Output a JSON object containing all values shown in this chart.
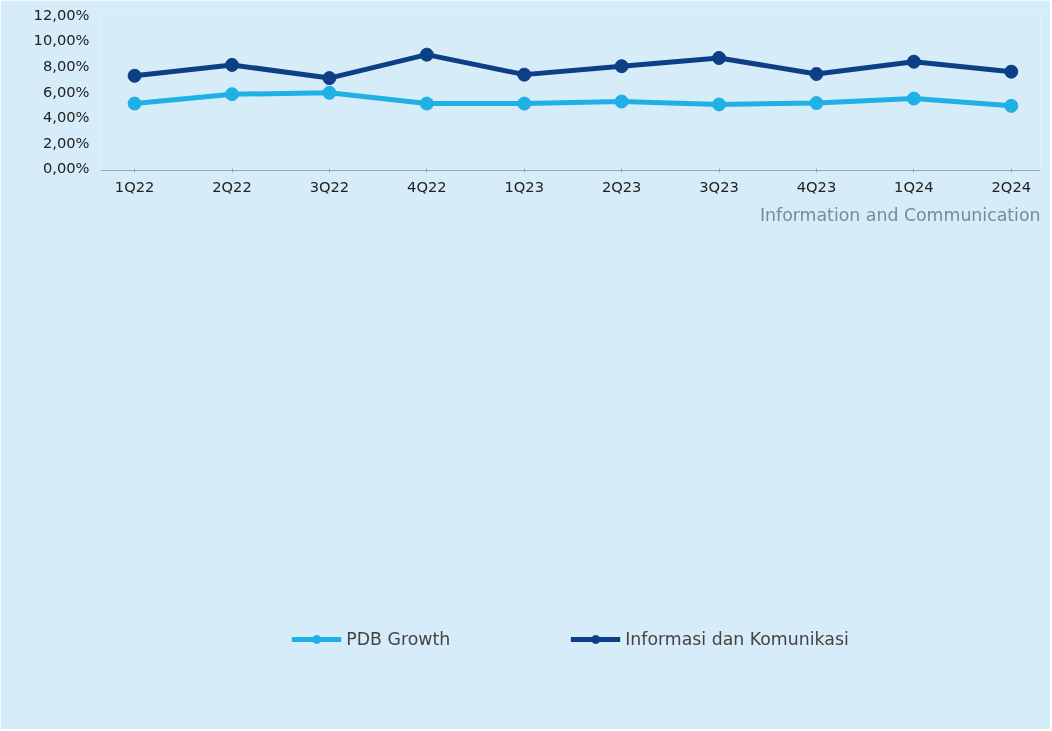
{
  "chart_data": {
    "type": "line",
    "categories": [
      "1Q22",
      "2Q22",
      "3Q22",
      "4Q22",
      "1Q23",
      "2Q23",
      "3Q23",
      "4Q23",
      "1Q24",
      "2Q24"
    ],
    "series": [
      {
        "name": "PDB Growth",
        "color": "#1fb0e6",
        "values": [
          5.03,
          5.76,
          5.87,
          5.03,
          5.03,
          5.19,
          4.96,
          5.07,
          5.42,
          4.85
        ]
      },
      {
        "name": "Informasi dan Komunikasi",
        "color": "#0d3f86",
        "values": [
          7.2,
          8.05,
          7.02,
          8.85,
          7.29,
          7.95,
          8.59,
          7.34,
          8.3,
          7.52
        ]
      }
    ],
    "ylim": [
      -0.2,
      12.3
    ],
    "yticks": [
      {
        "value": 0,
        "label": "0,00%"
      },
      {
        "value": 2,
        "label": "2,00%"
      },
      {
        "value": 4,
        "label": "4,00%"
      },
      {
        "value": 6,
        "label": "6,00%"
      },
      {
        "value": 8,
        "label": "8,00%"
      },
      {
        "value": 10,
        "label": "10,00%"
      },
      {
        "value": 12,
        "label": "12,00%"
      }
    ],
    "annotations": [
      "Information and Communication"
    ],
    "legend": "bottom",
    "grid": false,
    "marker": "circle",
    "line_style": "solid"
  }
}
